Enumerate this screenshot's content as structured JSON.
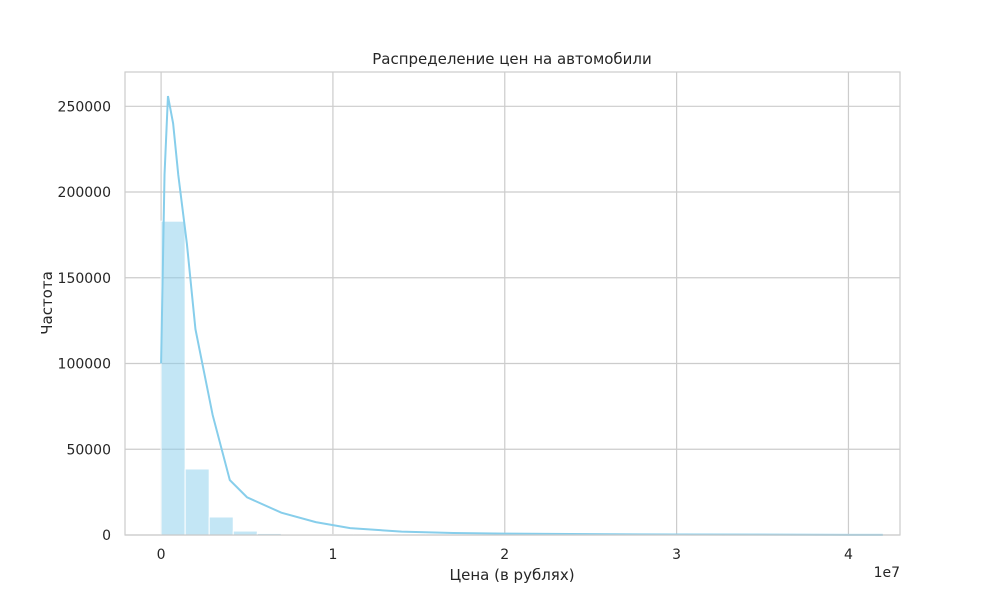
{
  "chart_data": {
    "type": "bar",
    "title": "Распределение цен на автомобили",
    "xlabel": "Цена (в рублях)",
    "ylabel": "Частота",
    "x_offset_text": "1e7",
    "xlim": [
      -0.21,
      4.3
    ],
    "ylim": [
      0,
      270000
    ],
    "xticks": [
      0,
      1,
      2,
      3,
      4
    ],
    "xtick_labels": [
      "0",
      "1",
      "2",
      "3",
      "4"
    ],
    "yticks": [
      0,
      50000,
      100000,
      150000,
      200000,
      250000
    ],
    "ytick_labels": [
      "0",
      "50000",
      "100000",
      "150000",
      "200000",
      "250000"
    ],
    "grid": true,
    "bar_color": "#87ceeb",
    "line_color": "#87ceeb",
    "bins": {
      "start": 0,
      "width": 0.14,
      "counts": [
        183000,
        38500,
        10500,
        2300,
        900,
        500,
        300,
        200,
        150,
        120,
        100,
        90,
        80,
        60,
        50,
        40,
        30,
        30,
        20,
        20,
        20,
        15,
        15,
        10,
        10,
        10,
        10,
        10,
        5,
        5
      ]
    },
    "kde": {
      "x": [
        0,
        0.02,
        0.04,
        0.07,
        0.1,
        0.15,
        0.2,
        0.3,
        0.4,
        0.5,
        0.7,
        0.9,
        1.1,
        1.4,
        1.7,
        2.0,
        2.5,
        3.0,
        3.5,
        4.0,
        4.2
      ],
      "y": [
        100000,
        210000,
        256000,
        240000,
        210000,
        170000,
        120000,
        70000,
        32000,
        22000,
        13000,
        7500,
        4000,
        2000,
        1200,
        800,
        500,
        300,
        200,
        100,
        80
      ]
    }
  }
}
